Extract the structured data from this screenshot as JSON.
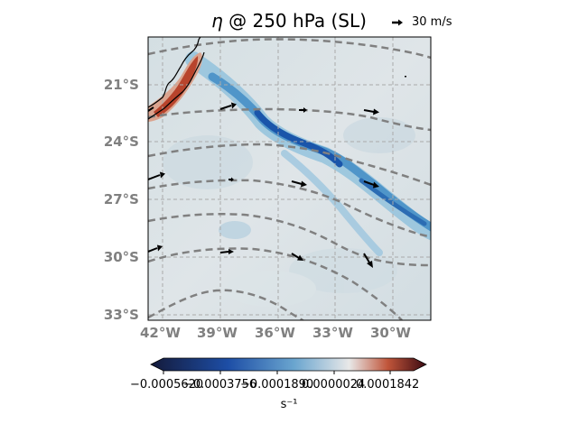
{
  "title": {
    "prefix": "η",
    "text": " @ 250 hPa (SL)"
  },
  "quiver_key": {
    "label": "30 m/s"
  },
  "map": {
    "lat_labels": [
      "21°S",
      "24°S",
      "27°S",
      "30°S",
      "33°S"
    ],
    "lon_labels": [
      "42°W",
      "39°W",
      "36°W",
      "33°W",
      "30°W"
    ]
  },
  "colorbar": {
    "tick_labels": [
      "−0.0005620",
      "−0.0003756",
      "−0.0001890",
      "0.0000024",
      "0.0001842"
    ],
    "unit": "s⁻¹",
    "colors": [
      "#141a3a",
      "#1d4ea6",
      "#5ea0cb",
      "#dcdcdc",
      "#c0553a",
      "#3b0a12"
    ]
  },
  "colors": {
    "gridline": "#aaaaaa",
    "contour": "#808080",
    "coast": "#000000",
    "axis_label": "#808080"
  }
}
